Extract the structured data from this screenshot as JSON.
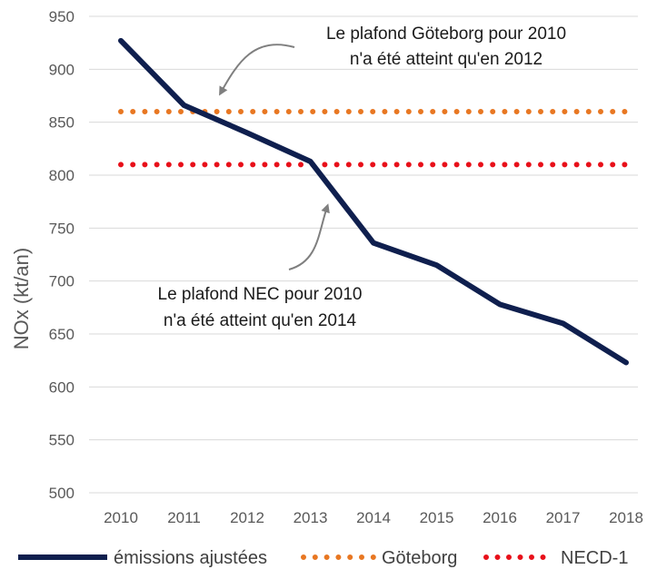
{
  "chart_data": {
    "type": "line",
    "title": "",
    "xlabel": "",
    "ylabel": "NOx (kt/an)",
    "categories": [
      "2010",
      "2011",
      "2012",
      "2013",
      "2014",
      "2015",
      "2016",
      "2017",
      "2018"
    ],
    "ylim": [
      500,
      950
    ],
    "yticks": [
      "500",
      "550",
      "600",
      "650",
      "700",
      "750",
      "800",
      "850",
      "900",
      "950"
    ],
    "grid": true,
    "legend_position": "bottom",
    "series": [
      {
        "name": "émissions ajustées",
        "style": "solid",
        "color": "#0f1f4e",
        "values": [
          927,
          866,
          840,
          813,
          736,
          715,
          678,
          660,
          623
        ]
      },
      {
        "name": "Göteborg",
        "style": "dotted",
        "color": "#e87722",
        "values": [
          860,
          860,
          860,
          860,
          860,
          860,
          860,
          860,
          860
        ]
      },
      {
        "name": "NECD-1",
        "style": "dotted",
        "color": "#e8101a",
        "values": [
          810,
          810,
          810,
          810,
          810,
          810,
          810,
          810,
          810
        ]
      }
    ],
    "annotations": [
      {
        "lines": [
          "Le plafond Göteborg pour 2010",
          "n'a été atteint qu'en 2012"
        ]
      },
      {
        "lines": [
          "Le plafond NEC pour 2010",
          "n'a été atteint qu'en 2014"
        ]
      }
    ]
  }
}
